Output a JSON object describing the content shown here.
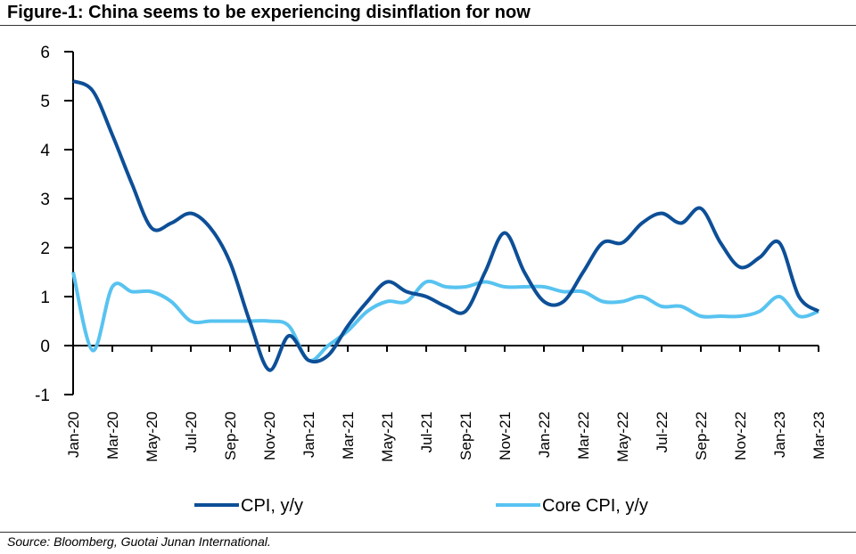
{
  "title": "Figure-1: China seems to be experiencing disinflation for now",
  "source": "Source: Bloomberg, Guotai Junan International.",
  "chart_data": {
    "type": "line",
    "title": "Figure-1: China seems to be experiencing disinflation for now",
    "xlabel": "",
    "ylabel": "",
    "ylim": [
      -1,
      6
    ],
    "yticks": [
      -1,
      0,
      1,
      2,
      3,
      4,
      5,
      6
    ],
    "grid": false,
    "legend": "bottom",
    "x": [
      "Jan-20",
      "Feb-20",
      "Mar-20",
      "Apr-20",
      "May-20",
      "Jun-20",
      "Jul-20",
      "Aug-20",
      "Sep-20",
      "Oct-20",
      "Nov-20",
      "Dec-20",
      "Jan-21",
      "Feb-21",
      "Mar-21",
      "Apr-21",
      "May-21",
      "Jun-21",
      "Jul-21",
      "Aug-21",
      "Sep-21",
      "Oct-21",
      "Nov-21",
      "Dec-21",
      "Jan-22",
      "Feb-22",
      "Mar-22",
      "Apr-22",
      "May-22",
      "Jun-22",
      "Jul-22",
      "Aug-22",
      "Sep-22",
      "Oct-22",
      "Nov-22",
      "Dec-22",
      "Jan-23",
      "Feb-23",
      "Mar-23"
    ],
    "xtick_labels": [
      "Jan-20",
      "Mar-20",
      "May-20",
      "Jul-20",
      "Sep-20",
      "Nov-20",
      "Jan-21",
      "Mar-21",
      "May-21",
      "Jul-21",
      "Sep-21",
      "Nov-21",
      "Jan-22",
      "Mar-22",
      "May-22",
      "Jul-22",
      "Sep-22",
      "Nov-22",
      "Jan-23",
      "Mar-23"
    ],
    "series": [
      {
        "name": "CPI, y/y",
        "color": "#0d4f97",
        "values": [
          5.4,
          5.2,
          4.3,
          3.3,
          2.4,
          2.5,
          2.7,
          2.4,
          1.7,
          0.5,
          -0.5,
          0.2,
          -0.3,
          -0.2,
          0.4,
          0.9,
          1.3,
          1.1,
          1.0,
          0.8,
          0.7,
          1.5,
          2.3,
          1.5,
          0.9,
          0.9,
          1.5,
          2.1,
          2.1,
          2.5,
          2.7,
          2.5,
          2.8,
          2.1,
          1.6,
          1.8,
          2.1,
          1.0,
          0.7
        ]
      },
      {
        "name": "Core CPI, y/y",
        "color": "#58c3f0",
        "values": [
          1.5,
          -0.1,
          1.2,
          1.1,
          1.1,
          0.9,
          0.5,
          0.5,
          0.5,
          0.5,
          0.5,
          0.4,
          -0.3,
          0.0,
          0.3,
          0.7,
          0.9,
          0.9,
          1.3,
          1.2,
          1.2,
          1.3,
          1.2,
          1.2,
          1.2,
          1.1,
          1.1,
          0.9,
          0.9,
          1.0,
          0.8,
          0.8,
          0.6,
          0.6,
          0.6,
          0.7,
          1.0,
          0.6,
          0.7
        ]
      }
    ]
  }
}
